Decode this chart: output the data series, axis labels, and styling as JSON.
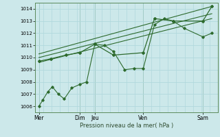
{
  "xlabel": "Pression niveau de la mer( hPa )",
  "bg_color": "#cce8ea",
  "grid_color": "#b0d8dc",
  "line_color": "#2d6a2d",
  "ylim": [
    1005.5,
    1014.5
  ],
  "day_labels": [
    "Mer",
    "Dim",
    "Jeu",
    "Ven",
    "Sam"
  ],
  "day_x": [
    0,
    55,
    75,
    140,
    220
  ],
  "vline_positions": [
    0,
    55,
    75,
    140,
    220
  ],
  "series1_x": [
    0,
    5,
    12,
    18,
    26,
    34,
    44,
    55,
    64,
    75,
    88,
    100,
    115,
    128,
    140,
    155,
    168,
    180,
    195,
    220,
    232
  ],
  "series1_y": [
    1006.0,
    1006.5,
    1007.2,
    1007.6,
    1007.0,
    1006.6,
    1007.5,
    1007.8,
    1008.0,
    1011.1,
    1011.0,
    1010.5,
    1009.0,
    1009.1,
    1009.1,
    1012.7,
    1013.2,
    1013.0,
    1012.4,
    1011.7,
    1012.0
  ],
  "series2_x": [
    0,
    16,
    36,
    55,
    75,
    100,
    140,
    155,
    180,
    220,
    232
  ],
  "series2_y": [
    1009.7,
    1009.9,
    1010.2,
    1010.4,
    1011.1,
    1010.2,
    1010.4,
    1013.2,
    1013.0,
    1013.0,
    1014.2
  ],
  "trend1_x": [
    0,
    232
  ],
  "trend1_y": [
    1009.6,
    1013.2
  ],
  "trend2_x": [
    0,
    232
  ],
  "trend2_y": [
    1010.0,
    1013.6
  ],
  "trend3_x": [
    0,
    232
  ],
  "trend3_y": [
    1010.3,
    1014.2
  ],
  "yticks": [
    1006,
    1007,
    1008,
    1009,
    1010,
    1011,
    1012,
    1013,
    1014
  ],
  "xlim": [
    -5,
    240
  ]
}
